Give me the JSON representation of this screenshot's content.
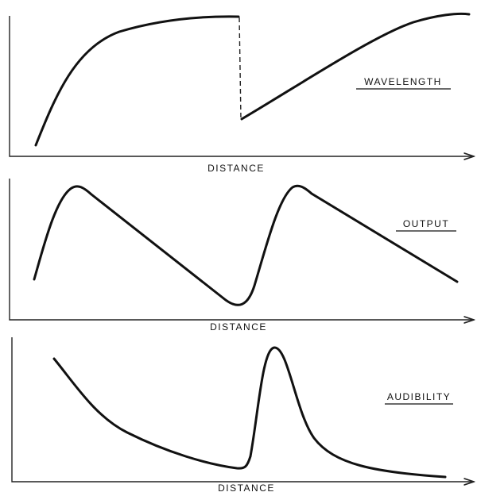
{
  "panels": [
    {
      "label": "WAVELENGTH",
      "x_axis_label": "DISTANCE"
    },
    {
      "label": "OUTPUT",
      "x_axis_label": "DISTANCE"
    },
    {
      "label": "AUDIBILITY",
      "x_axis_label": "DISTANCE"
    }
  ]
}
